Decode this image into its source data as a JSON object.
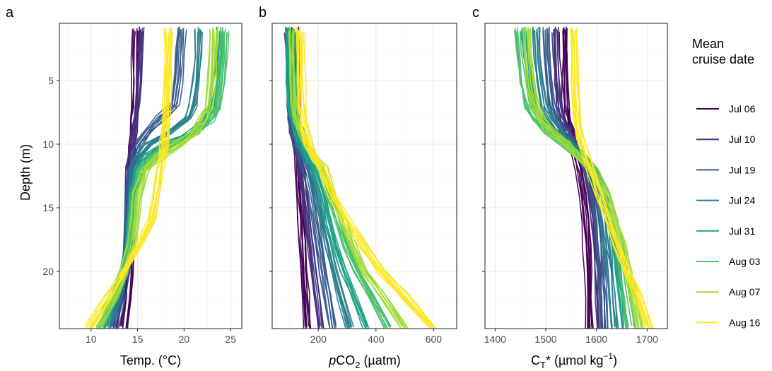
{
  "chart_data": [
    {
      "type": "line",
      "panel_label": "a",
      "xlabel": "Temp. (°C)",
      "ylabel": "Depth (m)",
      "xlim": [
        6.6,
        26.2
      ],
      "ylim": [
        0.5,
        24.5
      ],
      "y_reversed": true,
      "xticks": [
        10,
        15,
        20,
        25
      ],
      "yticks": [
        5,
        10,
        15,
        20
      ],
      "grid": true
    },
    {
      "type": "line",
      "panel_label": "b",
      "xlabel_italic": "p",
      "xlabel_main": "CO",
      "xlabel_sub": "2",
      "xlabel_unit": " (µatm)",
      "ylabel": "",
      "xlim": [
        40,
        680
      ],
      "ylim": [
        0.5,
        24.5
      ],
      "y_reversed": true,
      "xticks": [
        200,
        400,
        600
      ],
      "yticks": [
        5,
        10,
        15,
        20
      ],
      "grid": true
    },
    {
      "type": "line",
      "panel_label": "c",
      "xlabel_main": "C",
      "xlabel_sub": "T",
      "xlabel_mid": "* (µmol kg",
      "xlabel_sup": "−1",
      "xlabel_end": ")",
      "ylabel": "",
      "xlim": [
        1380,
        1740
      ],
      "ylim": [
        0.5,
        24.5
      ],
      "y_reversed": true,
      "xticks": [
        1400,
        1500,
        1600,
        1700
      ],
      "yticks": [
        5,
        10,
        15,
        20
      ],
      "grid": true
    }
  ],
  "legend": {
    "title_line1": "Mean",
    "title_line2": "cruise date",
    "placement": "right",
    "entries": [
      {
        "label": "Jul 06",
        "color": "#440154"
      },
      {
        "label": "Jul 10",
        "color": "#46327e"
      },
      {
        "label": "Jul 19",
        "color": "#365c8d"
      },
      {
        "label": "Jul 24",
        "color": "#277f8e"
      },
      {
        "label": "Jul 31",
        "color": "#1fa187"
      },
      {
        "label": "Aug 03",
        "color": "#4ac16d"
      },
      {
        "label": "Aug 07",
        "color": "#a0da39"
      },
      {
        "label": "Aug 16",
        "color": "#fde725"
      }
    ]
  },
  "profiles": {
    "depths": [
      1,
      3,
      5,
      7,
      8,
      9,
      10,
      11,
      12,
      14,
      16,
      18,
      20,
      22,
      24.5
    ],
    "temp_by_cruise": [
      [
        14.9,
        14.8,
        14.8,
        14.7,
        14.6,
        14.6,
        14.5,
        14.4,
        14.3,
        14.3,
        14.3,
        14.3,
        14.2,
        14.0,
        13.6
      ],
      [
        15.6,
        15.5,
        15.4,
        15.2,
        15.0,
        14.8,
        14.6,
        14.4,
        14.2,
        14.1,
        14.0,
        14.0,
        13.8,
        13.4,
        12.8
      ],
      [
        19.8,
        19.6,
        19.4,
        19.0,
        17.5,
        16.2,
        15.2,
        14.7,
        14.4,
        14.2,
        14.1,
        14.0,
        13.7,
        13.2,
        12.4
      ],
      [
        21.6,
        21.5,
        21.3,
        21.0,
        20.4,
        18.4,
        16.2,
        15.2,
        14.7,
        14.4,
        14.2,
        14.0,
        13.6,
        12.9,
        11.8
      ],
      [
        23.9,
        23.8,
        23.5,
        23.0,
        22.4,
        21.0,
        18.2,
        16.0,
        15.0,
        14.5,
        14.3,
        14.1,
        13.5,
        12.6,
        11.2
      ],
      [
        24.4,
        24.3,
        24.1,
        23.7,
        23.0,
        21.7,
        19.0,
        16.6,
        15.4,
        14.7,
        14.5,
        14.3,
        13.6,
        12.6,
        11.0
      ],
      [
        23.2,
        23.1,
        23.0,
        22.7,
        22.0,
        21.2,
        19.6,
        17.2,
        15.8,
        15.0,
        14.7,
        14.4,
        13.5,
        12.4,
        10.5
      ],
      [
        18.4,
        18.4,
        18.3,
        18.2,
        18.1,
        18.0,
        17.9,
        17.7,
        17.5,
        17.1,
        16.6,
        15.2,
        13.6,
        12.0,
        9.8
      ]
    ],
    "pco2_by_cruise": [
      [
        120,
        122,
        124,
        126,
        127,
        128,
        130,
        132,
        134,
        138,
        142,
        146,
        150,
        156,
        162
      ],
      [
        92,
        94,
        96,
        100,
        104,
        110,
        118,
        128,
        138,
        150,
        160,
        170,
        180,
        192,
        205
      ],
      [
        98,
        100,
        102,
        106,
        110,
        118,
        128,
        142,
        158,
        176,
        192,
        206,
        220,
        236,
        252
      ],
      [
        102,
        104,
        106,
        110,
        116,
        126,
        140,
        158,
        178,
        200,
        218,
        236,
        256,
        280,
        310
      ],
      [
        100,
        102,
        104,
        108,
        116,
        128,
        146,
        168,
        192,
        218,
        240,
        262,
        290,
        325,
        370
      ],
      [
        104,
        106,
        108,
        112,
        120,
        134,
        154,
        178,
        206,
        236,
        264,
        292,
        330,
        380,
        440
      ],
      [
        108,
        110,
        112,
        116,
        124,
        138,
        160,
        186,
        216,
        250,
        282,
        316,
        360,
        420,
        500
      ],
      [
        140,
        141,
        142,
        144,
        148,
        156,
        170,
        190,
        216,
        250,
        300,
        360,
        420,
        500,
        600
      ]
    ],
    "ct_by_cruise": [
      [
        1535,
        1536,
        1537,
        1539,
        1542,
        1547,
        1553,
        1559,
        1565,
        1573,
        1578,
        1581,
        1583,
        1584,
        1586
      ],
      [
        1518,
        1520,
        1522,
        1526,
        1532,
        1542,
        1556,
        1568,
        1578,
        1588,
        1594,
        1598,
        1601,
        1603,
        1606
      ],
      [
        1503,
        1505,
        1508,
        1514,
        1523,
        1538,
        1556,
        1572,
        1584,
        1597,
        1604,
        1609,
        1612,
        1615,
        1618
      ],
      [
        1482,
        1485,
        1490,
        1498,
        1510,
        1528,
        1552,
        1573,
        1590,
        1607,
        1617,
        1623,
        1628,
        1632,
        1637
      ],
      [
        1455,
        1460,
        1466,
        1476,
        1492,
        1515,
        1546,
        1572,
        1594,
        1615,
        1628,
        1636,
        1642,
        1648,
        1654
      ],
      [
        1448,
        1452,
        1458,
        1468,
        1484,
        1508,
        1540,
        1570,
        1595,
        1618,
        1633,
        1644,
        1652,
        1660,
        1668
      ],
      [
        1462,
        1465,
        1470,
        1478,
        1490,
        1510,
        1538,
        1566,
        1592,
        1618,
        1636,
        1650,
        1662,
        1674,
        1686
      ],
      [
        1556,
        1557,
        1558,
        1560,
        1562,
        1566,
        1572,
        1580,
        1590,
        1606,
        1624,
        1642,
        1662,
        1684,
        1706
      ]
    ]
  }
}
